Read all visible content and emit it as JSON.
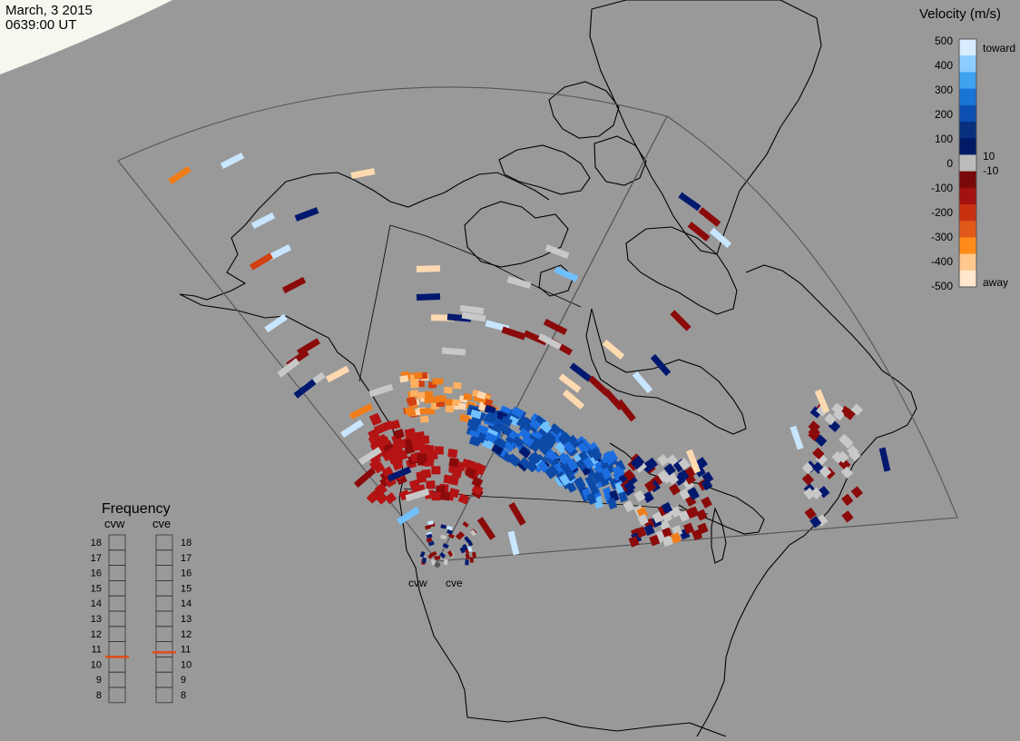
{
  "header": {
    "date": "March, 3 2015",
    "time": "0639:00 UT"
  },
  "velocity_scale": {
    "title": "Velocity (m/s)",
    "ticks": [
      "500",
      "400",
      "300",
      "200",
      "100",
      "0",
      "-100",
      "-200",
      "-300",
      "-400",
      "-500"
    ],
    "label_toward": "toward",
    "label_away": "away",
    "label_pos_threshold": "10",
    "label_neg_threshold": "-10",
    "colors_top_to_bottom": [
      "#d8ecff",
      "#8ccdff",
      "#3fa3f0",
      "#1a74d6",
      "#0d4fb0",
      "#08307f",
      "#001a66",
      "#bbbbbb",
      "#7a0a0a",
      "#a31111",
      "#c83010",
      "#e0581a",
      "#ff8c1a",
      "#ffc88c",
      "#ffe6cc"
    ]
  },
  "frequency_panel": {
    "title": "Frequency",
    "radars": [
      {
        "name": "cvw",
        "value_mhz": 10.5,
        "marker_color": "#e04a1a"
      },
      {
        "name": "cve",
        "value_mhz": 10.8,
        "marker_color": "#e04a1a"
      }
    ],
    "ticks": [
      "18",
      "17",
      "16",
      "15",
      "14",
      "13",
      "12",
      "11",
      "10",
      "9",
      "8"
    ]
  },
  "radar_sites": [
    {
      "name": "cvw"
    },
    {
      "name": "cve"
    }
  ],
  "map_colors": {
    "background": "#999999",
    "coastline": "#000000",
    "fov_outline": "#555555",
    "daylight": "#f7f7f0"
  }
}
